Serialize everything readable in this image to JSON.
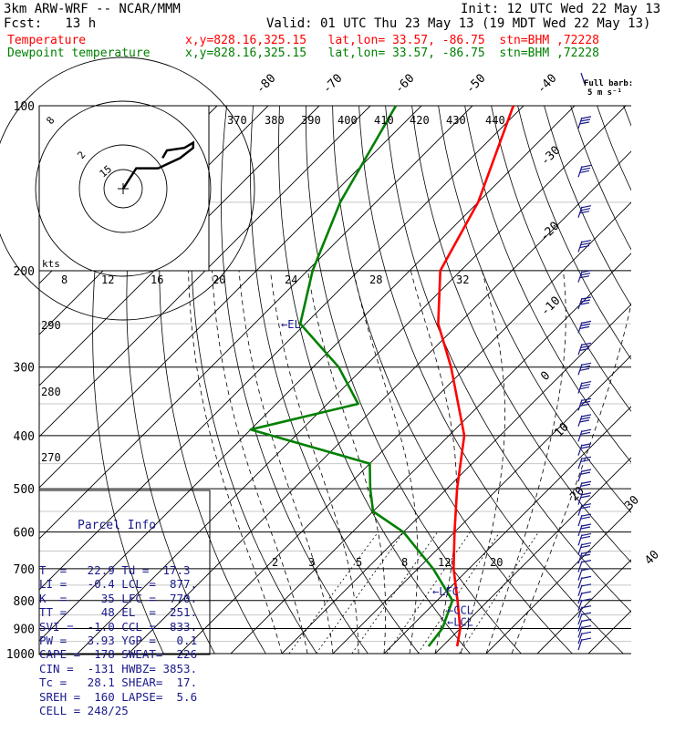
{
  "header": {
    "model": "3km ARW-WRF -- NCAR/MMM",
    "init": "Init: 12 UTC Wed 22 May 13",
    "fcst": "Fcst:   13 h",
    "valid": "Valid: 01 UTC Thu 23 May 13 (19 MDT Wed 22 May 13)",
    "temp_label": "Temperature",
    "temp_loc": "x,y=828.16,325.15   lat,lon= 33.57, -86.75  stn=BHM ,72228",
    "dew_label": "Dewpoint temperature",
    "dew_loc": "x,y=828.16,325.15   lat,lon= 33.57, -86.75  stn=BHM ,72228"
  },
  "colors": {
    "temperature": "#ff0000",
    "dewpoint": "#008000",
    "parcel_text": "#1a1a8c",
    "wind_barbs": "#1a1a8c"
  },
  "barb_legend": {
    "title": "Full barb:",
    "value": "5 m s⁻¹"
  },
  "parcel_info": {
    "title": "Parcel Info",
    "rows": [
      "T  =   22.9 Td =  17.3",
      "LI =   -0.4 LCL =  877.",
      "K  =     35 LFC =  770.",
      "TT =     48 EL  =  251.",
      "SVI =  -1.0 CCL =  833.",
      "PW =   3.93 YGP =   0.1",
      "CAPE =  178 SWEAT=  226",
      "CIN =  -131 HWBZ= 3853.",
      "Tc =   28.1 SHEAR=  17.",
      "SREH =  160 LAPSE=  5.6",
      "CELL = 248/25"
    ]
  },
  "chart_data": {
    "type": "line",
    "title": "3km ARW-WRF -- NCAR/MMM",
    "ylabel": "",
    "xlabel": "",
    "y_scale": "log-pressure",
    "y_ticks": [
      100,
      200,
      300,
      400,
      500,
      600,
      700,
      800,
      900,
      1000
    ],
    "isotherm_labels_top": [
      "-80",
      "-70",
      "-60",
      "-50",
      "-40"
    ],
    "isotherm_labels_right": [
      "-30",
      "-20",
      "-10",
      "0",
      "10",
      "20",
      "30",
      "40"
    ],
    "theta_labels": [
      "370",
      "380",
      "390",
      "400",
      "410",
      "420",
      "430",
      "440"
    ],
    "theta_labels_left": [
      "290",
      "280",
      "270"
    ],
    "mixing_ratio_labels": [
      "2",
      "3",
      "5",
      "8",
      "12",
      "20"
    ],
    "hodograph": {
      "ring_labels": [
        "8",
        "12",
        "16",
        "20",
        "24",
        "28",
        "32"
      ],
      "ring_label_top": "8",
      "small_ring_labels": [
        "2",
        "15"
      ],
      "units": "kts",
      "trace": [
        [
          0,
          0
        ],
        [
          3,
          8
        ],
        [
          8,
          8
        ],
        [
          13,
          12
        ],
        [
          16,
          16
        ],
        [
          16,
          18
        ],
        [
          14,
          16
        ],
        [
          10,
          15
        ],
        [
          9,
          12
        ]
      ]
    },
    "levels": [
      {
        "name": "EL",
        "label": "EL",
        "p": 251
      },
      {
        "name": "LFC",
        "label": "LFC",
        "p": 770
      },
      {
        "name": "CCL",
        "label": "CCL",
        "p": 833
      },
      {
        "name": "LCL",
        "label": "LCL",
        "p": 877
      }
    ],
    "series": [
      {
        "name": "Temperature",
        "points": [
          [
            100,
            -72
          ],
          [
            150,
            -60
          ],
          [
            200,
            -54
          ],
          [
            250,
            -44
          ],
          [
            300,
            -33
          ],
          [
            400,
            -17
          ],
          [
            500,
            -8
          ],
          [
            600,
            0
          ],
          [
            700,
            7
          ],
          [
            800,
            14
          ],
          [
            900,
            20
          ],
          [
            970,
            22.9
          ]
        ]
      },
      {
        "name": "Dewpoint temperature",
        "points": [
          [
            100,
            -95
          ],
          [
            150,
            -87
          ],
          [
            200,
            -79
          ],
          [
            250,
            -71
          ],
          [
            300,
            -55
          ],
          [
            350,
            -44
          ],
          [
            390,
            -60
          ],
          [
            450,
            -30
          ],
          [
            500,
            -25
          ],
          [
            550,
            -20
          ],
          [
            600,
            -10
          ],
          [
            700,
            3
          ],
          [
            800,
            13
          ],
          [
            900,
            16.5
          ],
          [
            970,
            17.3
          ]
        ]
      }
    ]
  }
}
